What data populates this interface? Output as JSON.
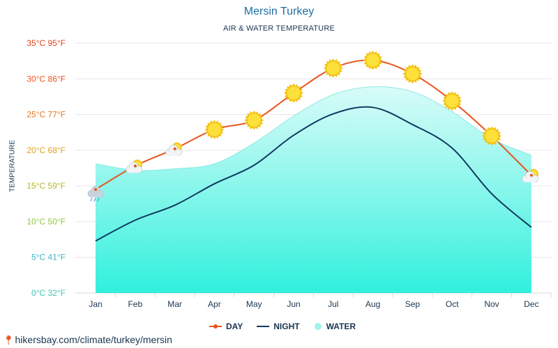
{
  "header": {
    "title": "Mersin Turkey",
    "subtitle": "AIR & WATER TEMPERATURE"
  },
  "footer": {
    "url": "hikersbay.com/climate/turkey/mersin"
  },
  "legend": [
    {
      "label": "DAY",
      "color": "#e8541e"
    },
    {
      "label": "NIGHT",
      "color": "#0f3a5e"
    },
    {
      "label": "WATER",
      "color": "#9ff3ec"
    }
  ],
  "chart_data": {
    "type": "line",
    "title": "Mersin Turkey",
    "subtitle": "AIR & WATER TEMPERATURE",
    "ylabel": "TEMPERATURE",
    "xlabel": "",
    "ylim": [
      0,
      35
    ],
    "yticks": [
      {
        "c": 0,
        "label": "0°C 32°F",
        "color": "#3cc4b9"
      },
      {
        "c": 5,
        "label": "5°C 41°F",
        "color": "#3ab6c8"
      },
      {
        "c": 10,
        "label": "10°C 50°F",
        "color": "#8cc63e"
      },
      {
        "c": 15,
        "label": "15°C 59°F",
        "color": "#b5b82a"
      },
      {
        "c": 20,
        "label": "20°C 68°F",
        "color": "#e0a21c"
      },
      {
        "c": 25,
        "label": "25°C 77°F",
        "color": "#e8781c"
      },
      {
        "c": 30,
        "label": "30°C 86°F",
        "color": "#e8541e"
      },
      {
        "c": 35,
        "label": "35°C 95°F",
        "color": "#e8401e"
      }
    ],
    "categories": [
      "Jan",
      "Feb",
      "Mar",
      "Apr",
      "May",
      "Jun",
      "Jul",
      "Aug",
      "Sep",
      "Oct",
      "Nov",
      "Dec"
    ],
    "series": [
      {
        "name": "DAY",
        "color": "#e8541e",
        "values": [
          14.5,
          17.8,
          20.2,
          22.9,
          24.2,
          28.0,
          31.5,
          32.6,
          30.7,
          26.9,
          22.0,
          16.5
        ]
      },
      {
        "name": "NIGHT",
        "color": "#0f3a5e",
        "values": [
          7.3,
          10.2,
          12.3,
          15.3,
          17.9,
          22.1,
          25.1,
          26.0,
          23.6,
          20.3,
          13.9,
          9.2
        ]
      },
      {
        "name": "WATER",
        "color": "#9ff3ec",
        "values": [
          18.1,
          17.2,
          17.4,
          18.1,
          21.0,
          24.8,
          27.8,
          28.9,
          28.2,
          25.4,
          21.6,
          19.3
        ]
      }
    ],
    "weather_icons": [
      "cloud-rain",
      "sun-cloud",
      "sun-cloud",
      "sun",
      "sun",
      "sun",
      "sun",
      "sun",
      "sun",
      "sun",
      "sun",
      "sun-cloud"
    ]
  }
}
